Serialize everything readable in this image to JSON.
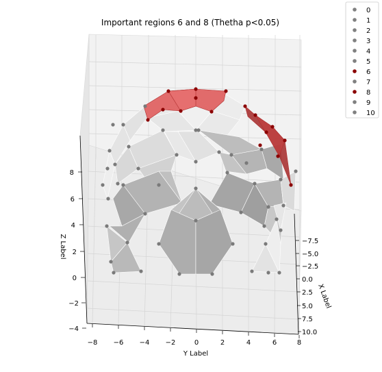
{
  "chart_data": {
    "type": "scatter",
    "title": "Important regions 6 and 8 (Thetha p<0.05)",
    "xlabel": "X Label",
    "ylabel": "Y Label",
    "zlabel": "Z Label",
    "y_ticks": [
      "−8",
      "−6",
      "−4",
      "−2",
      "0",
      "2",
      "4",
      "6",
      "8"
    ],
    "x_ticks": [
      "−7.5",
      "−5.0",
      "−2.5",
      "0.0",
      "2.5",
      "5.0",
      "7.5",
      "10.0"
    ],
    "z_ticks": [
      "−4",
      "−2",
      "0",
      "2",
      "4",
      "6",
      "8"
    ],
    "legend": {
      "placement": "top-right",
      "entries": [
        {
          "label": "0",
          "color": "#808080"
        },
        {
          "label": "1",
          "color": "#808080"
        },
        {
          "label": "2",
          "color": "#808080"
        },
        {
          "label": "3",
          "color": "#808080"
        },
        {
          "label": "4",
          "color": "#808080"
        },
        {
          "label": "5",
          "color": "#808080"
        },
        {
          "label": "6",
          "color": "#8b0000"
        },
        {
          "label": "7",
          "color": "#808080"
        },
        {
          "label": "8",
          "color": "#8b0000"
        },
        {
          "label": "9",
          "color": "#808080"
        },
        {
          "label": "10",
          "color": "#808080"
        }
      ]
    },
    "highlighted_regions": [
      "6",
      "8"
    ],
    "colors": {
      "highlight": "#8b0000",
      "normal": "#808080",
      "highlight_fill": "#e06060"
    }
  }
}
